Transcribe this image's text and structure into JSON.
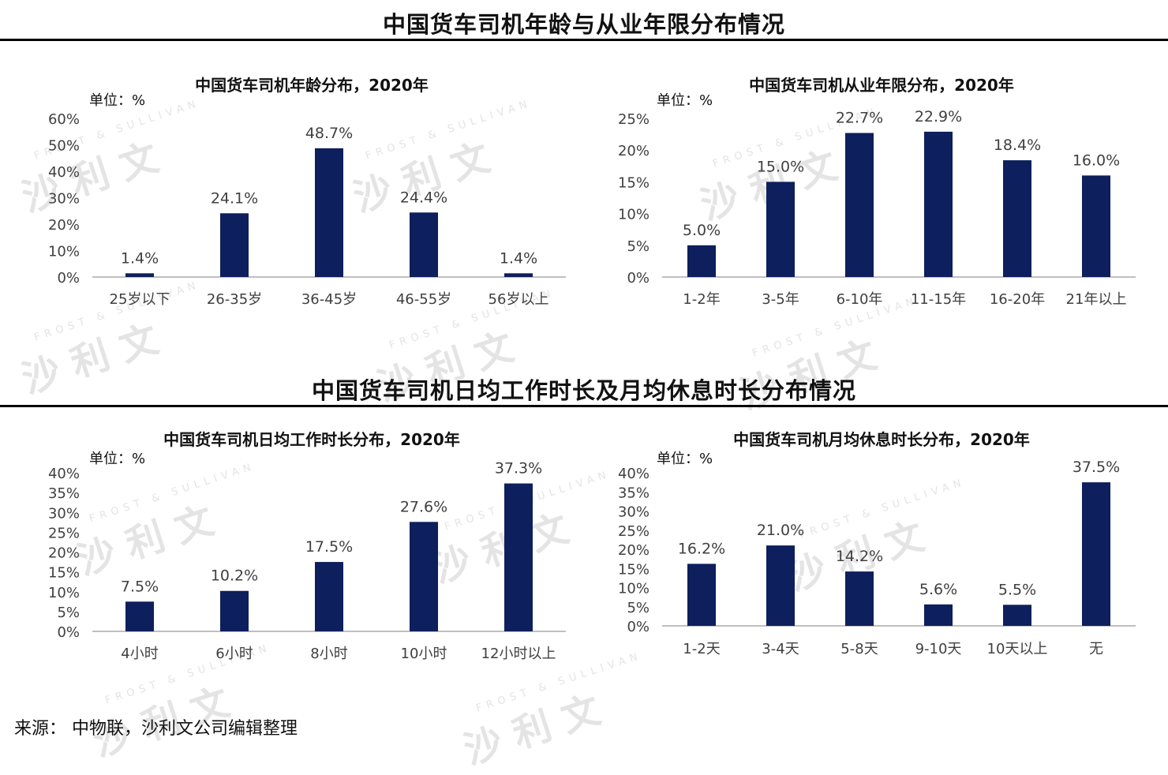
{
  "sections": [
    {
      "title": "中国货车司机年龄与从业年限分布情况"
    },
    {
      "title": "中国货车司机日均工作时长及月均休息时长分布情况"
    }
  ],
  "source": "来源： 中物联，沙利文公司编辑整理",
  "watermark": {
    "brand": "沙 利 文",
    "sub": "FROST & SULLIVAN"
  },
  "colors": {
    "bar": "#0d1f5c",
    "axis": "#bfbfbf",
    "text": "#404040"
  },
  "chart_data": [
    {
      "type": "bar",
      "title": "中国货车司机年龄分布，2020年",
      "unit_label": "单位：%",
      "categories": [
        "25岁以下",
        "26-35岁",
        "36-45岁",
        "46-55岁",
        "56岁以上"
      ],
      "values": [
        1.4,
        24.1,
        48.7,
        24.4,
        1.4
      ],
      "value_labels": [
        "1.4%",
        "24.1%",
        "48.7%",
        "24.4%",
        "1.4%"
      ],
      "yticks": [
        "0%",
        "10%",
        "20%",
        "30%",
        "40%",
        "50%",
        "60%"
      ],
      "ylim": [
        0,
        60
      ]
    },
    {
      "type": "bar",
      "title": "中国货车司机从业年限分布，2020年",
      "unit_label": "单位：%",
      "categories": [
        "1-2年",
        "3-5年",
        "6-10年",
        "11-15年",
        "16-20年",
        "21年以上"
      ],
      "values": [
        5.0,
        15.0,
        22.7,
        22.9,
        18.4,
        16.0
      ],
      "value_labels": [
        "5.0%",
        "15.0%",
        "22.7%",
        "22.9%",
        "18.4%",
        "16.0%"
      ],
      "yticks": [
        "0%",
        "5%",
        "10%",
        "15%",
        "20%",
        "25%"
      ],
      "ylim": [
        0,
        25
      ]
    },
    {
      "type": "bar",
      "title": "中国货车司机日均工作时长分布，2020年",
      "unit_label": "单位：%",
      "categories": [
        "4小时",
        "6小时",
        "8小时",
        "10小时",
        "12小时以上"
      ],
      "values": [
        7.5,
        10.2,
        17.5,
        27.6,
        37.3
      ],
      "value_labels": [
        "7.5%",
        "10.2%",
        "17.5%",
        "27.6%",
        "37.3%"
      ],
      "yticks": [
        "0%",
        "5%",
        "10%",
        "15%",
        "20%",
        "25%",
        "30%",
        "35%",
        "40%"
      ],
      "ylim": [
        0,
        40
      ]
    },
    {
      "type": "bar",
      "title": "中国货车司机月均休息时长分布，2020年",
      "unit_label": "单位：%",
      "categories": [
        "1-2天",
        "3-4天",
        "5-8天",
        "9-10天",
        "10天以上",
        "无"
      ],
      "values": [
        16.2,
        21.0,
        14.2,
        5.6,
        5.5,
        37.5
      ],
      "value_labels": [
        "16.2%",
        "21.0%",
        "14.2%",
        "5.6%",
        "5.5%",
        "37.5%"
      ],
      "yticks": [
        "0%",
        "5%",
        "10%",
        "15%",
        "20%",
        "25%",
        "30%",
        "35%",
        "40%"
      ],
      "ylim": [
        0,
        40
      ]
    }
  ]
}
